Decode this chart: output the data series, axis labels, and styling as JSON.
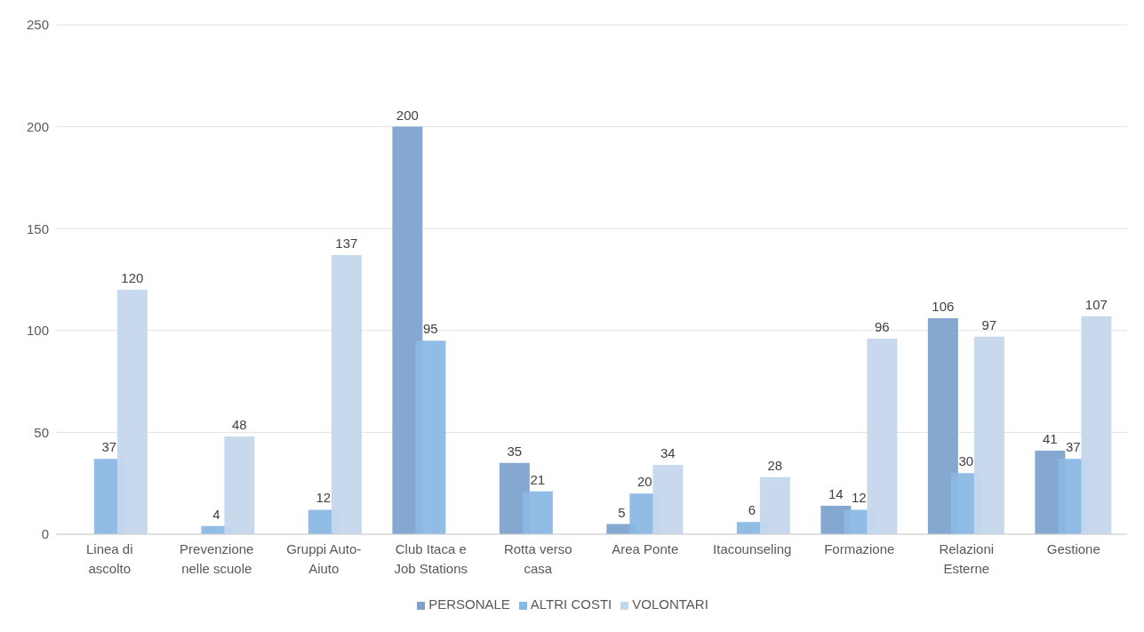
{
  "chart_data": {
    "type": "bar",
    "categories": [
      "Linea di ascolto",
      "Prevenzione nelle scuole",
      "Gruppi Auto-Aiuto",
      "Club Itaca e Job Stations",
      "Rotta verso casa",
      "Area Ponte",
      "Itacounseling",
      "Formazione",
      "Relazioni Esterne",
      "Gestione"
    ],
    "series": [
      {
        "name": "PERSONALE",
        "color": "#7da3cc",
        "values": [
          null,
          null,
          null,
          200,
          35,
          5,
          null,
          14,
          106,
          41
        ]
      },
      {
        "name": "ALTRI COSTI",
        "color": "#8ab8e4",
        "values": [
          37,
          4,
          12,
          95,
          21,
          20,
          6,
          12,
          30,
          37
        ]
      },
      {
        "name": "VOLONTARI",
        "color": "#c5d7ed",
        "values": [
          120,
          48,
          137,
          null,
          null,
          34,
          28,
          96,
          97,
          107
        ]
      }
    ],
    "ylim": [
      0,
      250
    ],
    "yticks": [
      0,
      50,
      100,
      150,
      200,
      250
    ],
    "grid": "y",
    "legend": "bottom",
    "data_labels": true
  }
}
